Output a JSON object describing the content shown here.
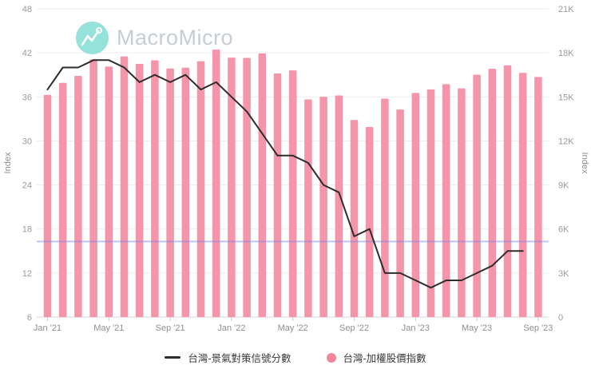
{
  "logo": {
    "text": "MacroMicro",
    "icon": "macromicro-wave-icon"
  },
  "axes": {
    "left": {
      "label": "Index",
      "ticks": [
        48,
        42,
        36,
        30,
        24,
        18,
        12,
        6
      ],
      "ylim": [
        6,
        48
      ]
    },
    "right": {
      "label": "Index",
      "ticks": [
        {
          "label": "21K",
          "value": 21000
        },
        {
          "label": "18K",
          "value": 18000
        },
        {
          "label": "15K",
          "value": 15000
        },
        {
          "label": "12K",
          "value": 12000
        },
        {
          "label": "9K",
          "value": 9000
        },
        {
          "label": "6K",
          "value": 6000
        },
        {
          "label": "3K",
          "value": 3000
        },
        {
          "label": "0",
          "value": 0
        }
      ],
      "ylim": [
        0,
        21000
      ]
    },
    "x": {
      "shown_labels": [
        {
          "label": "Jan '21",
          "index": 0
        },
        {
          "label": "May '21",
          "index": 4
        },
        {
          "label": "Sep '21",
          "index": 8
        },
        {
          "label": "Jan '22",
          "index": 12
        },
        {
          "label": "May '22",
          "index": 16
        },
        {
          "label": "Sep '22",
          "index": 20
        },
        {
          "label": "Jan '23",
          "index": 24
        },
        {
          "label": "May '23",
          "index": 28
        },
        {
          "label": "Sep '23",
          "index": 32
        }
      ]
    }
  },
  "legend": [
    {
      "label": "台灣-景氣對策信號分數",
      "marker": "line",
      "color": "#2d2d2d"
    },
    {
      "label": "台灣-加權股價指數",
      "marker": "circle",
      "color": "#f2849b"
    }
  ],
  "chart_data": {
    "type": "combo",
    "x": [
      "2021-01",
      "2021-02",
      "2021-03",
      "2021-04",
      "2021-05",
      "2021-06",
      "2021-07",
      "2021-08",
      "2021-09",
      "2021-10",
      "2021-11",
      "2021-12",
      "2022-01",
      "2022-02",
      "2022-03",
      "2022-04",
      "2022-05",
      "2022-06",
      "2022-07",
      "2022-08",
      "2022-09",
      "2022-10",
      "2022-11",
      "2022-12",
      "2023-01",
      "2023-02",
      "2023-03",
      "2023-04",
      "2023-05",
      "2023-06",
      "2023-07",
      "2023-08",
      "2023-09"
    ],
    "series": [
      {
        "name": "台灣-景氣對策信號分數",
        "type": "line",
        "axis": "left",
        "color": "#2d2d2d",
        "values": [
          37,
          40,
          40,
          41,
          41,
          40,
          38,
          39,
          38,
          39,
          37,
          38,
          36,
          34,
          31,
          28,
          28,
          27,
          24,
          23,
          17,
          18,
          12,
          12,
          11,
          10,
          11,
          11,
          12,
          13,
          15,
          15,
          null
        ]
      },
      {
        "name": "台灣-加權股價指數",
        "type": "bar",
        "axis": "right",
        "color": "#f495a9",
        "values": [
          15138,
          15953,
          16431,
          17566,
          17068,
          17755,
          17247,
          17490,
          16935,
          16987,
          17428,
          18218,
          17674,
          17652,
          17963,
          16592,
          16807,
          14825,
          15000,
          15095,
          13425,
          12950,
          14880,
          14138,
          15265,
          15503,
          15868,
          15579,
          16512,
          16916,
          17145,
          16635,
          16353
        ]
      }
    ],
    "reference_line": {
      "value": 16.3,
      "axis": "left",
      "color": "#7d88e8"
    },
    "left_ylim": [
      6,
      48
    ],
    "right_ylim": [
      0,
      21000
    ],
    "grid": true,
    "legend_position": "bottom"
  }
}
